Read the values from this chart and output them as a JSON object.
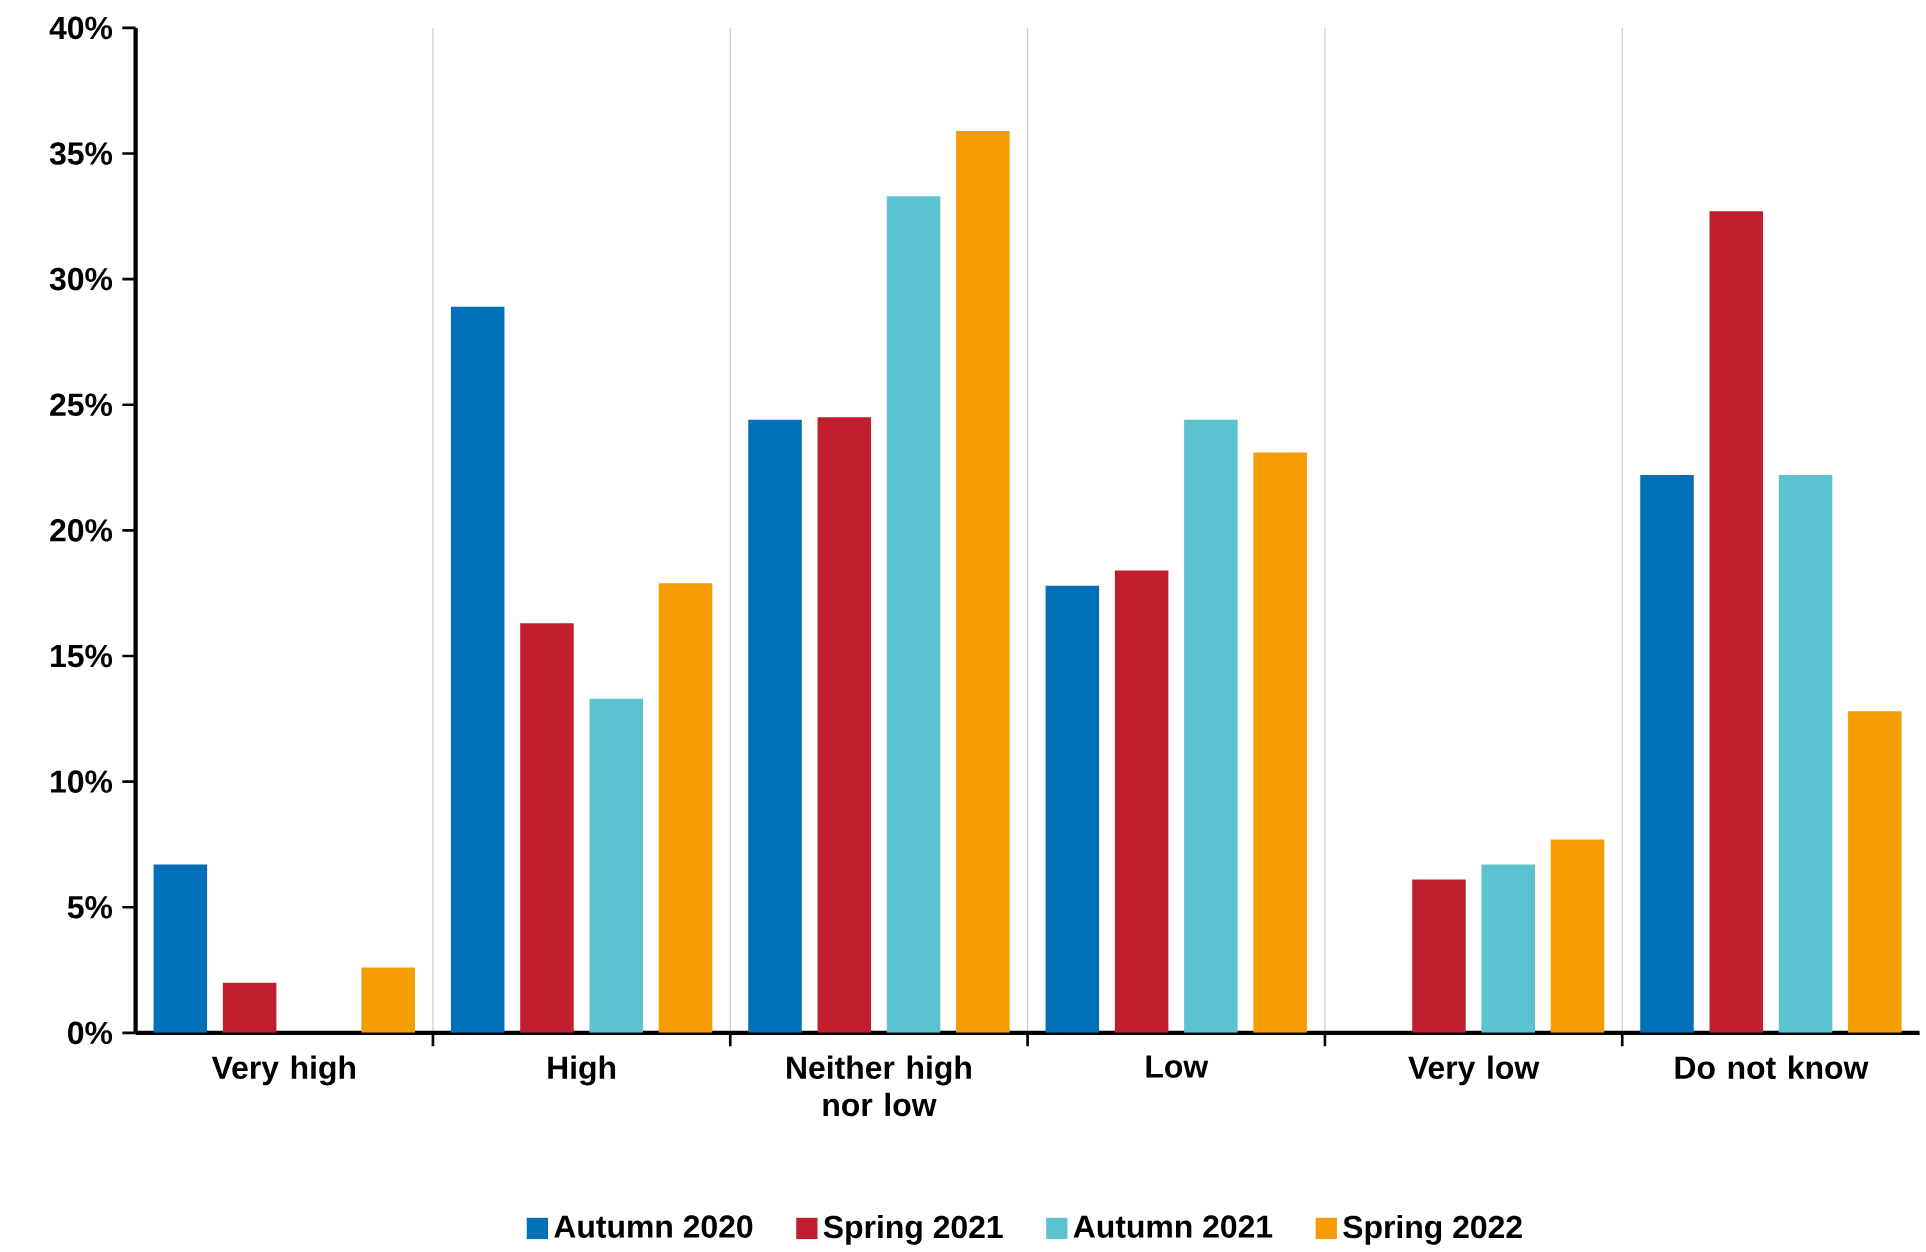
{
  "chart_data": {
    "type": "bar",
    "categories": [
      "Very high",
      "High",
      "Neither high nor low",
      "Low",
      "Very low",
      "Do not know"
    ],
    "series": [
      {
        "name": "Autumn 2020",
        "color": "#0070b8",
        "values": [
          6.7,
          28.9,
          24.4,
          17.8,
          0,
          22.2
        ]
      },
      {
        "name": "Spring 2021",
        "color": "#be1e2d",
        "values": [
          2.0,
          16.3,
          24.5,
          18.4,
          6.1,
          32.7
        ]
      },
      {
        "name": "Autumn 2021",
        "color": "#5bc2cf",
        "values": [
          0,
          13.3,
          33.3,
          24.4,
          6.7,
          22.2
        ]
      },
      {
        "name": "Spring 2022",
        "color": "#f59c00",
        "values": [
          2.6,
          17.9,
          35.9,
          23.1,
          7.7,
          12.8
        ]
      }
    ],
    "ylim": [
      0,
      40
    ],
    "yticks": [
      {
        "value": 0,
        "label": "0%"
      },
      {
        "value": 5,
        "label": "5%"
      },
      {
        "value": 10,
        "label": "10%"
      },
      {
        "value": 15,
        "label": "15%"
      },
      {
        "value": 20,
        "label": "20%"
      },
      {
        "value": 25,
        "label": "25%"
      },
      {
        "value": 30,
        "label": "30%"
      },
      {
        "value": 35,
        "label": "35%"
      },
      {
        "value": 40,
        "label": "40%"
      }
    ],
    "grid": "x",
    "legend": "bottom"
  }
}
